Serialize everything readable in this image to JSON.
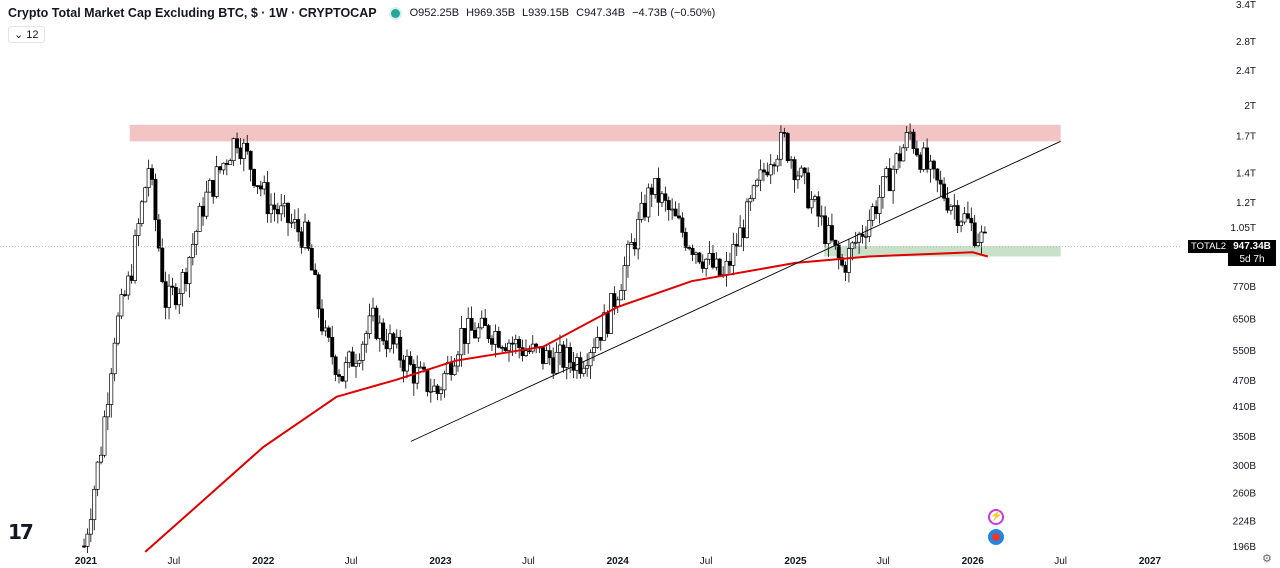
{
  "header": {
    "title": "Crypto Total Market Cap Excluding BTC, $ · 1W · CRYPTOCAP",
    "open": "O952.25B",
    "high": "H969.35B",
    "low": "L939.15B",
    "close": "C947.34B",
    "change": "−4.73B (−0.50%)"
  },
  "indicator_pill": "⌄ 12",
  "price_label": {
    "symbol": "TOTAL2",
    "value": "947.34B",
    "countdown": "5d 7h"
  },
  "logo": "17",
  "icons": {
    "bolt": "bolt-icon",
    "flag": "us-flag-icon",
    "settings": "gear-icon"
  },
  "colors": {
    "candle": "#000000",
    "ma": "#e00000",
    "resistance_zone": "#f2c4c4",
    "support_zone": "#c9e1c9",
    "trendline": "#000000",
    "grid_price": "#9e9e9e"
  },
  "chart_data": {
    "type": "line",
    "title": "Crypto Total Market Cap Excluding BTC, $ · 1W · CRYPTOCAP",
    "scale": "log",
    "x_ticks": [
      "2021",
      "Jul",
      "2022",
      "Jul",
      "2023",
      "Jul",
      "2024",
      "Jul",
      "2025",
      "Jul",
      "2026",
      "Jul",
      "2027"
    ],
    "y_ticks": [
      "3.4T",
      "2.8T",
      "2.4T",
      "2T",
      "1.7T",
      "1.4T",
      "1.2T",
      "1.05T",
      "770B",
      "650B",
      "550B",
      "470B",
      "410B",
      "350B",
      "300B",
      "260B",
      "224B",
      "196B"
    ],
    "current_price": "947.34B",
    "series": [
      {
        "kind": "candlestick-close",
        "x": [
          "2020-12-28",
          "2021-02-01",
          "2021-03-01",
          "2021-04-01",
          "2021-05-10",
          "2021-06-15",
          "2021-07-20",
          "2021-09-01",
          "2021-11-08",
          "2022-01-10",
          "2022-03-28",
          "2022-05-09",
          "2022-06-13",
          "2022-08-15",
          "2022-11-07",
          "2022-12-26",
          "2023-02-13",
          "2023-04-17",
          "2023-06-12",
          "2023-08-01",
          "2023-10-16",
          "2023-12-11",
          "2024-03-11",
          "2024-05-20",
          "2024-08-05",
          "2024-11-11",
          "2024-12-09",
          "2025-02-03",
          "2025-04-07",
          "2025-06-01",
          "2025-08-25",
          "2025-10-10",
          "2025-11-17",
          "2026-02-01"
        ],
        "y_billion": [
          196,
          330,
          600,
          800,
          1450,
          700,
          800,
          1200,
          1700,
          1200,
          1000,
          580,
          480,
          640,
          490,
          440,
          600,
          610,
          560,
          530,
          520,
          650,
          1300,
          1000,
          800,
          1550,
          1650,
          1200,
          850,
          1100,
          1720,
          1350,
          1200,
          947
        ]
      }
    ],
    "moving_average": {
      "x": [
        "2021-05-03",
        "2021-09-01",
        "2022-01-01",
        "2022-06-01",
        "2022-10-01",
        "2023-02-01",
        "2023-08-01",
        "2024-01-01",
        "2024-06-01",
        "2025-01-01",
        "2025-06-01",
        "2026-01-01",
        "2026-02-01"
      ],
      "y_billion": [
        190,
        250,
        330,
        430,
        470,
        520,
        560,
        690,
        790,
        870,
        900,
        920,
        900
      ]
    },
    "annotations": [
      {
        "type": "zone",
        "label": "",
        "from_date": "2021-04-01",
        "to_date": "2026-07-01",
        "y_low_billion": 1650,
        "y_high_billion": 1800
      },
      {
        "type": "zone",
        "label": "",
        "from_date": "2025-03-01",
        "to_date": "2026-07-01",
        "y_low_billion": 900,
        "y_high_billion": 950
      },
      {
        "type": "trendline",
        "from_date": "2022-11-01",
        "from_y_billion": 340,
        "to_date": "2026-07-01",
        "to_y_billion": 1650
      }
    ]
  }
}
